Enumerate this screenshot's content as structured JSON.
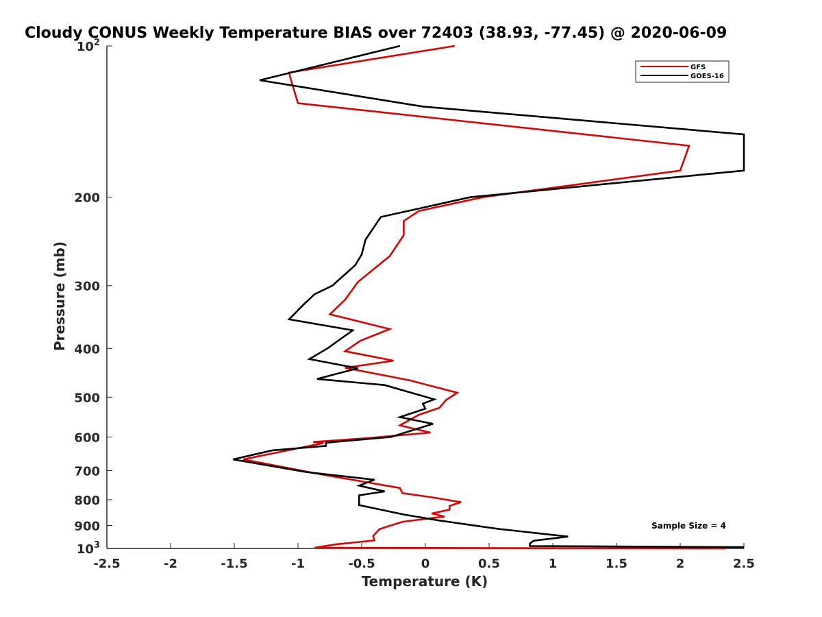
{
  "chart_data": {
    "type": "line",
    "title": "Cloudy CONUS Weekly Temperature BIAS over 72403 (38.93, -77.45) @ 2020-06-09",
    "xlabel": "Temperature (K)",
    "ylabel": "Pressure (mb)",
    "xlim": [
      -2.5,
      2.5
    ],
    "ylim": [
      100,
      1000
    ],
    "y_scale": "log",
    "y_reversed": true,
    "x_ticks": [
      -2.5,
      -2,
      -1.5,
      -1,
      -0.5,
      0,
      0.5,
      1,
      1.5,
      2,
      2.5
    ],
    "x_tick_labels": [
      "-2.5",
      "-2",
      "-1.5",
      "-1",
      "-0.5",
      "0",
      "0.5",
      "1",
      "1.5",
      "2",
      "2.5"
    ],
    "y_ticks": [
      100,
      200,
      300,
      400,
      500,
      600,
      700,
      800,
      900,
      1000
    ],
    "y_tick_labels": [
      {
        "base": "10",
        "sup": "2"
      },
      {
        "base": "200"
      },
      {
        "base": "300"
      },
      {
        "base": "400"
      },
      {
        "base": "500"
      },
      {
        "base": "600"
      },
      {
        "base": "700"
      },
      {
        "base": "800"
      },
      {
        "base": "900"
      },
      {
        "base": "10",
        "sup": "3"
      }
    ],
    "grid": false,
    "legend_position": "top-right",
    "series": [
      {
        "name": "GFS",
        "color": "#e00000",
        "x": [
          0.23,
          -1.07,
          -1.05,
          -1.0,
          2.07,
          2.0,
          0.45,
          -0.05,
          -0.17,
          -0.17,
          -0.28,
          -0.53,
          -0.63,
          -0.75,
          -0.28,
          -0.51,
          -0.63,
          -0.25,
          -0.63,
          -0.12,
          0.25,
          0.16,
          0.11,
          -0.05,
          -0.2,
          0.04,
          -0.45,
          -0.88,
          -0.8,
          -1.43,
          -0.82,
          -0.2,
          -0.18,
          0.05,
          0.28,
          0.19,
          0.19,
          0.05,
          0.15,
          -0.18,
          -0.36,
          -0.41,
          -0.4,
          -0.71,
          -0.87,
          2.36
        ],
        "y": [
          100,
          113,
          118,
          130,
          158,
          177,
          200,
          213,
          223,
          238,
          262,
          295,
          320,
          342,
          366,
          386,
          405,
          423,
          437,
          463,
          490,
          507,
          525,
          542,
          569,
          588,
          603,
          614,
          617,
          665,
          712,
          758,
          776,
          791,
          809,
          823,
          837,
          852,
          864,
          885,
          915,
          945,
          964,
          982,
          997,
          1000
        ]
      },
      {
        "name": "GOES-16",
        "color": "#000000",
        "x": [
          -0.2,
          -1.3,
          -0.02,
          2.5,
          2.5,
          0.35,
          -0.35,
          -0.47,
          -0.5,
          -0.55,
          -0.73,
          -0.87,
          -0.95,
          -1.07,
          -0.57,
          -0.77,
          -0.91,
          -0.53,
          -0.85,
          -0.32,
          0.07,
          -0.02,
          0,
          -0.2,
          0.06,
          -0.27,
          -0.78,
          -0.78,
          -1.2,
          -1.51,
          -0.93,
          -0.4,
          -0.52,
          -0.32,
          -0.52,
          -0.52,
          -0.17,
          0.11,
          0.57,
          1.12,
          0.85,
          0.82,
          0.82,
          2.5
        ],
        "y": [
          100,
          117,
          132,
          150,
          177,
          200,
          219,
          243,
          260,
          273,
          300,
          312,
          326,
          350,
          368,
          400,
          420,
          438,
          460,
          473,
          505,
          515,
          527,
          548,
          565,
          600,
          616,
          625,
          638,
          665,
          705,
          730,
          750,
          770,
          784,
          820,
          856,
          880,
          914,
          947,
          965,
          978,
          989,
          994
        ]
      }
    ],
    "annotation": "Sample Size = 4"
  }
}
